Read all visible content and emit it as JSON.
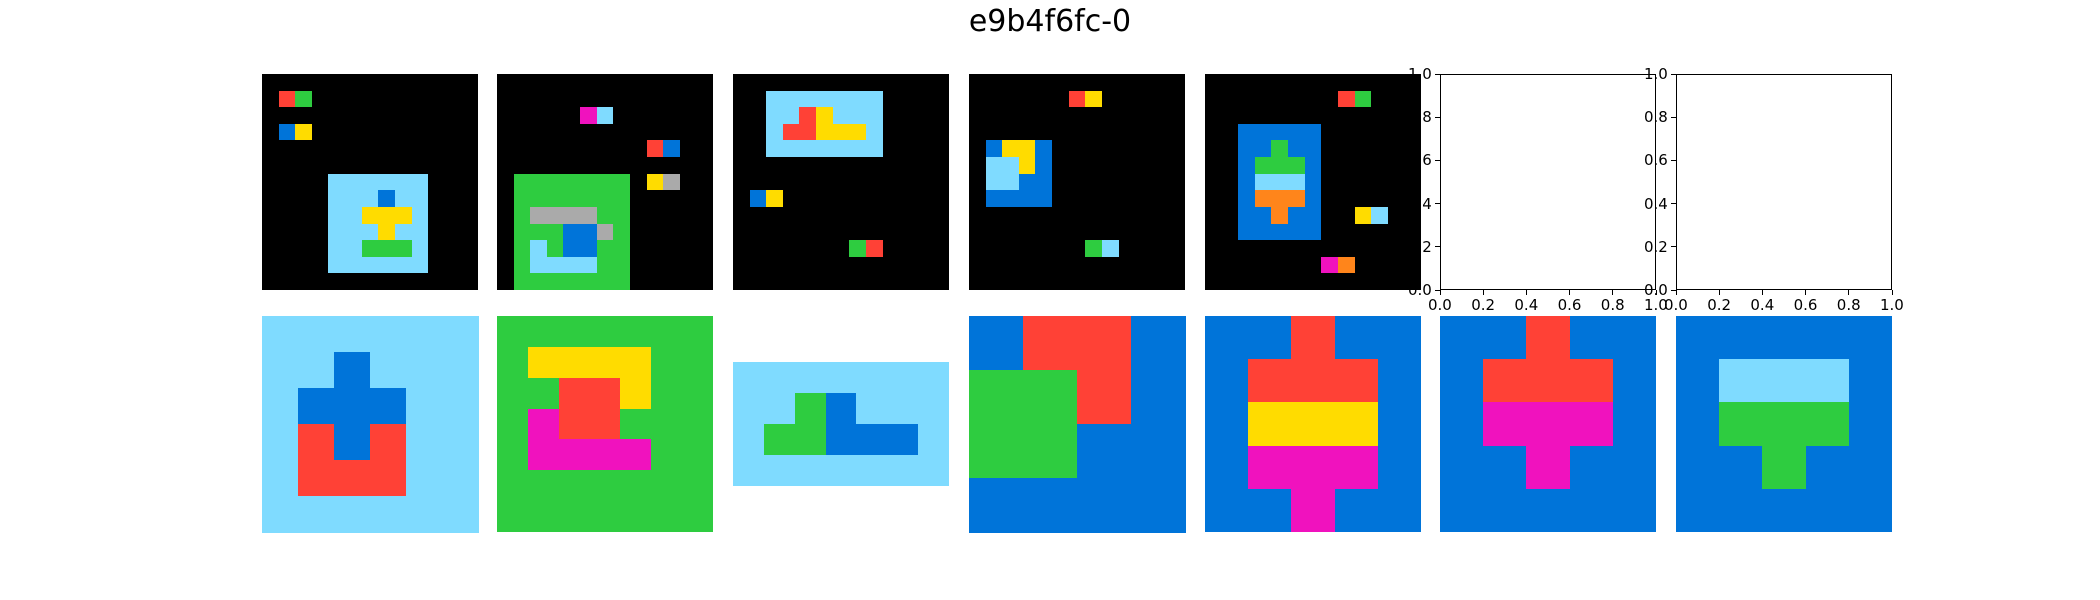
{
  "title": "e9b4f6fc-0",
  "palette": {
    "0": "#000000",
    "1": "#0074d9",
    "2": "#ff4136",
    "3": "#2ecc40",
    "4": "#ffdc00",
    "5": "#aaaaaa",
    "6": "#f012be",
    "7": "#ff851b",
    "8": "#7fdbff",
    "9": "#870c25"
  },
  "top_row": [
    {
      "kind": "grid",
      "grid": [
        [
          0,
          0,
          0,
          0,
          0,
          0,
          0,
          0,
          0,
          0,
          0,
          0,
          0
        ],
        [
          0,
          2,
          3,
          0,
          0,
          0,
          0,
          0,
          0,
          0,
          0,
          0,
          0
        ],
        [
          0,
          0,
          0,
          0,
          0,
          0,
          0,
          0,
          0,
          0,
          0,
          0,
          0
        ],
        [
          0,
          1,
          4,
          0,
          0,
          0,
          0,
          0,
          0,
          0,
          0,
          0,
          0
        ],
        [
          0,
          0,
          0,
          0,
          0,
          0,
          0,
          0,
          0,
          0,
          0,
          0,
          0
        ],
        [
          0,
          0,
          0,
          0,
          0,
          0,
          0,
          0,
          0,
          0,
          0,
          0,
          0
        ],
        [
          0,
          0,
          0,
          0,
          8,
          8,
          8,
          8,
          8,
          8,
          0,
          0,
          0
        ],
        [
          0,
          0,
          0,
          0,
          8,
          8,
          8,
          1,
          8,
          8,
          0,
          0,
          0
        ],
        [
          0,
          0,
          0,
          0,
          8,
          8,
          4,
          4,
          4,
          8,
          0,
          0,
          0
        ],
        [
          0,
          0,
          0,
          0,
          8,
          8,
          8,
          4,
          8,
          8,
          0,
          0,
          0
        ],
        [
          0,
          0,
          0,
          0,
          8,
          8,
          3,
          3,
          3,
          8,
          0,
          0,
          0
        ],
        [
          0,
          0,
          0,
          0,
          8,
          8,
          8,
          8,
          8,
          8,
          0,
          0,
          0
        ],
        [
          0,
          0,
          0,
          0,
          0,
          0,
          0,
          0,
          0,
          0,
          0,
          0,
          0
        ]
      ]
    },
    {
      "kind": "grid",
      "grid": [
        [
          0,
          0,
          0,
          0,
          0,
          0,
          0,
          0,
          0,
          0,
          0,
          0,
          0
        ],
        [
          0,
          0,
          0,
          0,
          0,
          0,
          0,
          0,
          0,
          0,
          0,
          0,
          0
        ],
        [
          0,
          0,
          0,
          0,
          0,
          6,
          8,
          0,
          0,
          0,
          0,
          0,
          0
        ],
        [
          0,
          0,
          0,
          0,
          0,
          0,
          0,
          0,
          0,
          0,
          0,
          0,
          0
        ],
        [
          0,
          0,
          0,
          0,
          0,
          0,
          0,
          0,
          0,
          2,
          1,
          0,
          0
        ],
        [
          0,
          0,
          0,
          0,
          0,
          0,
          0,
          0,
          0,
          0,
          0,
          0,
          0
        ],
        [
          0,
          3,
          3,
          3,
          3,
          3,
          3,
          3,
          0,
          4,
          5,
          0,
          0
        ],
        [
          0,
          3,
          3,
          3,
          3,
          3,
          3,
          3,
          0,
          0,
          0,
          0,
          0
        ],
        [
          0,
          3,
          5,
          5,
          5,
          5,
          3,
          3,
          0,
          0,
          0,
          0,
          0
        ],
        [
          0,
          3,
          3,
          3,
          1,
          1,
          5,
          3,
          0,
          0,
          0,
          0,
          0
        ],
        [
          0,
          3,
          8,
          3,
          1,
          1,
          3,
          3,
          0,
          0,
          0,
          0,
          0
        ],
        [
          0,
          3,
          8,
          8,
          8,
          8,
          3,
          3,
          0,
          0,
          0,
          0,
          0
        ],
        [
          0,
          3,
          3,
          3,
          3,
          3,
          3,
          3,
          0,
          0,
          0,
          0,
          0
        ]
      ]
    },
    {
      "kind": "grid",
      "grid": [
        [
          0,
          0,
          0,
          0,
          0,
          0,
          0,
          0,
          0,
          0,
          0,
          0,
          0
        ],
        [
          0,
          0,
          8,
          8,
          8,
          8,
          8,
          8,
          8,
          0,
          0,
          0,
          0
        ],
        [
          0,
          0,
          8,
          8,
          2,
          4,
          8,
          8,
          8,
          0,
          0,
          0,
          0
        ],
        [
          0,
          0,
          8,
          2,
          2,
          4,
          4,
          4,
          8,
          0,
          0,
          0,
          0
        ],
        [
          0,
          0,
          8,
          8,
          8,
          8,
          8,
          8,
          8,
          0,
          0,
          0,
          0
        ],
        [
          0,
          0,
          0,
          0,
          0,
          0,
          0,
          0,
          0,
          0,
          0,
          0,
          0
        ],
        [
          0,
          0,
          0,
          0,
          0,
          0,
          0,
          0,
          0,
          0,
          0,
          0,
          0
        ],
        [
          0,
          1,
          4,
          0,
          0,
          0,
          0,
          0,
          0,
          0,
          0,
          0,
          0
        ],
        [
          0,
          0,
          0,
          0,
          0,
          0,
          0,
          0,
          0,
          0,
          0,
          0,
          0
        ],
        [
          0,
          0,
          0,
          0,
          0,
          0,
          0,
          0,
          0,
          0,
          0,
          0,
          0
        ],
        [
          0,
          0,
          0,
          0,
          0,
          0,
          0,
          3,
          2,
          0,
          0,
          0,
          0
        ],
        [
          0,
          0,
          0,
          0,
          0,
          0,
          0,
          0,
          0,
          0,
          0,
          0,
          0
        ],
        [
          0,
          0,
          0,
          0,
          0,
          0,
          0,
          0,
          0,
          0,
          0,
          0,
          0
        ]
      ]
    },
    {
      "kind": "grid",
      "grid": [
        [
          0,
          0,
          0,
          0,
          0,
          0,
          0,
          0,
          0,
          0,
          0,
          0,
          0
        ],
        [
          0,
          0,
          0,
          0,
          0,
          0,
          2,
          4,
          0,
          0,
          0,
          0,
          0
        ],
        [
          0,
          0,
          0,
          0,
          0,
          0,
          0,
          0,
          0,
          0,
          0,
          0,
          0
        ],
        [
          0,
          0,
          0,
          0,
          0,
          0,
          0,
          0,
          0,
          0,
          0,
          0,
          0
        ],
        [
          0,
          1,
          4,
          4,
          1,
          0,
          0,
          0,
          0,
          0,
          0,
          0,
          0
        ],
        [
          0,
          8,
          8,
          4,
          1,
          0,
          0,
          0,
          0,
          0,
          0,
          0,
          0
        ],
        [
          0,
          8,
          8,
          1,
          1,
          0,
          0,
          0,
          0,
          0,
          0,
          0,
          0
        ],
        [
          0,
          1,
          1,
          1,
          1,
          0,
          0,
          0,
          0,
          0,
          0,
          0,
          0
        ],
        [
          0,
          0,
          0,
          0,
          0,
          0,
          0,
          0,
          0,
          0,
          0,
          0,
          0
        ],
        [
          0,
          0,
          0,
          0,
          0,
          0,
          0,
          0,
          0,
          0,
          0,
          0,
          0
        ],
        [
          0,
          0,
          0,
          0,
          0,
          0,
          0,
          3,
          8,
          0,
          0,
          0,
          0
        ],
        [
          0,
          0,
          0,
          0,
          0,
          0,
          0,
          0,
          0,
          0,
          0,
          0,
          0
        ],
        [
          0,
          0,
          0,
          0,
          0,
          0,
          0,
          0,
          0,
          0,
          0,
          0,
          0
        ]
      ]
    },
    {
      "kind": "grid",
      "grid": [
        [
          0,
          0,
          0,
          0,
          0,
          0,
          0,
          0,
          0,
          0,
          0,
          0,
          0
        ],
        [
          0,
          0,
          0,
          0,
          0,
          0,
          0,
          0,
          2,
          3,
          0,
          0,
          0
        ],
        [
          0,
          0,
          0,
          0,
          0,
          0,
          0,
          0,
          0,
          0,
          0,
          0,
          0
        ],
        [
          0,
          0,
          1,
          1,
          1,
          1,
          1,
          0,
          0,
          0,
          0,
          0,
          0
        ],
        [
          0,
          0,
          1,
          1,
          3,
          1,
          1,
          0,
          0,
          0,
          0,
          0,
          0
        ],
        [
          0,
          0,
          1,
          3,
          3,
          3,
          1,
          0,
          0,
          0,
          0,
          0,
          0
        ],
        [
          0,
          0,
          1,
          8,
          8,
          8,
          1,
          0,
          0,
          0,
          0,
          0,
          0
        ],
        [
          0,
          0,
          1,
          7,
          7,
          7,
          1,
          0,
          0,
          0,
          0,
          0,
          0
        ],
        [
          0,
          0,
          1,
          1,
          7,
          1,
          1,
          0,
          0,
          4,
          8,
          0,
          0
        ],
        [
          0,
          0,
          1,
          1,
          1,
          1,
          1,
          0,
          0,
          0,
          0,
          0,
          0
        ],
        [
          0,
          0,
          0,
          0,
          0,
          0,
          0,
          0,
          0,
          0,
          0,
          0,
          0
        ],
        [
          0,
          0,
          0,
          0,
          0,
          0,
          0,
          6,
          7,
          0,
          0,
          0,
          0
        ],
        [
          0,
          0,
          0,
          0,
          0,
          0,
          0,
          0,
          0,
          0,
          0,
          0,
          0
        ]
      ]
    },
    {
      "kind": "empty_axes",
      "xticks": [
        "0.0",
        "0.2",
        "0.4",
        "0.6",
        "0.8",
        "1.0"
      ],
      "yticks": [
        "0.0",
        "0.2",
        "0.4",
        "0.6",
        "0.8",
        "1.0"
      ]
    },
    {
      "kind": "empty_axes",
      "xticks": [
        "0.0",
        "0.2",
        "0.4",
        "0.6",
        "0.8",
        "1.0"
      ],
      "yticks": [
        "0.0",
        "0.2",
        "0.4",
        "0.6",
        "0.8",
        "1.0"
      ]
    }
  ],
  "bottom_row": [
    {
      "kind": "grid",
      "grid": [
        [
          8,
          8,
          8,
          8,
          8,
          8
        ],
        [
          8,
          8,
          1,
          8,
          8,
          8
        ],
        [
          8,
          1,
          1,
          1,
          8,
          8
        ],
        [
          8,
          2,
          1,
          2,
          8,
          8
        ],
        [
          8,
          2,
          2,
          2,
          8,
          8
        ],
        [
          8,
          8,
          8,
          8,
          8,
          8
        ]
      ]
    },
    {
      "kind": "grid",
      "grid": [
        [
          3,
          3,
          3,
          3,
          3,
          3,
          3
        ],
        [
          3,
          4,
          4,
          4,
          4,
          3,
          3
        ],
        [
          3,
          3,
          2,
          2,
          4,
          3,
          3
        ],
        [
          3,
          6,
          2,
          2,
          3,
          3,
          3
        ],
        [
          3,
          6,
          6,
          6,
          6,
          3,
          3
        ],
        [
          3,
          3,
          3,
          3,
          3,
          3,
          3
        ],
        [
          3,
          3,
          3,
          3,
          3,
          3,
          3
        ]
      ]
    },
    {
      "kind": "grid",
      "grid": [
        [
          8,
          8,
          8,
          8,
          8,
          8,
          8
        ],
        [
          8,
          8,
          3,
          1,
          8,
          8,
          8
        ],
        [
          8,
          3,
          3,
          1,
          1,
          1,
          8
        ],
        [
          8,
          8,
          8,
          8,
          8,
          8,
          8
        ]
      ]
    },
    {
      "kind": "grid",
      "grid": [
        [
          1,
          2,
          2,
          1
        ],
        [
          3,
          3,
          2,
          1
        ],
        [
          3,
          3,
          1,
          1
        ],
        [
          1,
          1,
          1,
          1
        ]
      ]
    },
    {
      "kind": "grid",
      "grid": [
        [
          1,
          1,
          2,
          1,
          1
        ],
        [
          1,
          2,
          2,
          2,
          1
        ],
        [
          1,
          4,
          4,
          4,
          1
        ],
        [
          1,
          6,
          6,
          6,
          1
        ],
        [
          1,
          1,
          6,
          1,
          1
        ]
      ]
    },
    {
      "kind": "grid",
      "grid": [
        [
          1,
          1,
          2,
          1,
          1
        ],
        [
          1,
          2,
          2,
          2,
          1
        ],
        [
          1,
          6,
          6,
          6,
          1
        ],
        [
          1,
          1,
          6,
          1,
          1
        ],
        [
          1,
          1,
          1,
          1,
          1
        ]
      ]
    },
    {
      "kind": "grid",
      "grid": [
        [
          1,
          1,
          1,
          1,
          1
        ],
        [
          1,
          8,
          8,
          8,
          1
        ],
        [
          1,
          3,
          3,
          3,
          1
        ],
        [
          1,
          1,
          3,
          1,
          1
        ],
        [
          1,
          1,
          1,
          1,
          1
        ]
      ]
    }
  ]
}
